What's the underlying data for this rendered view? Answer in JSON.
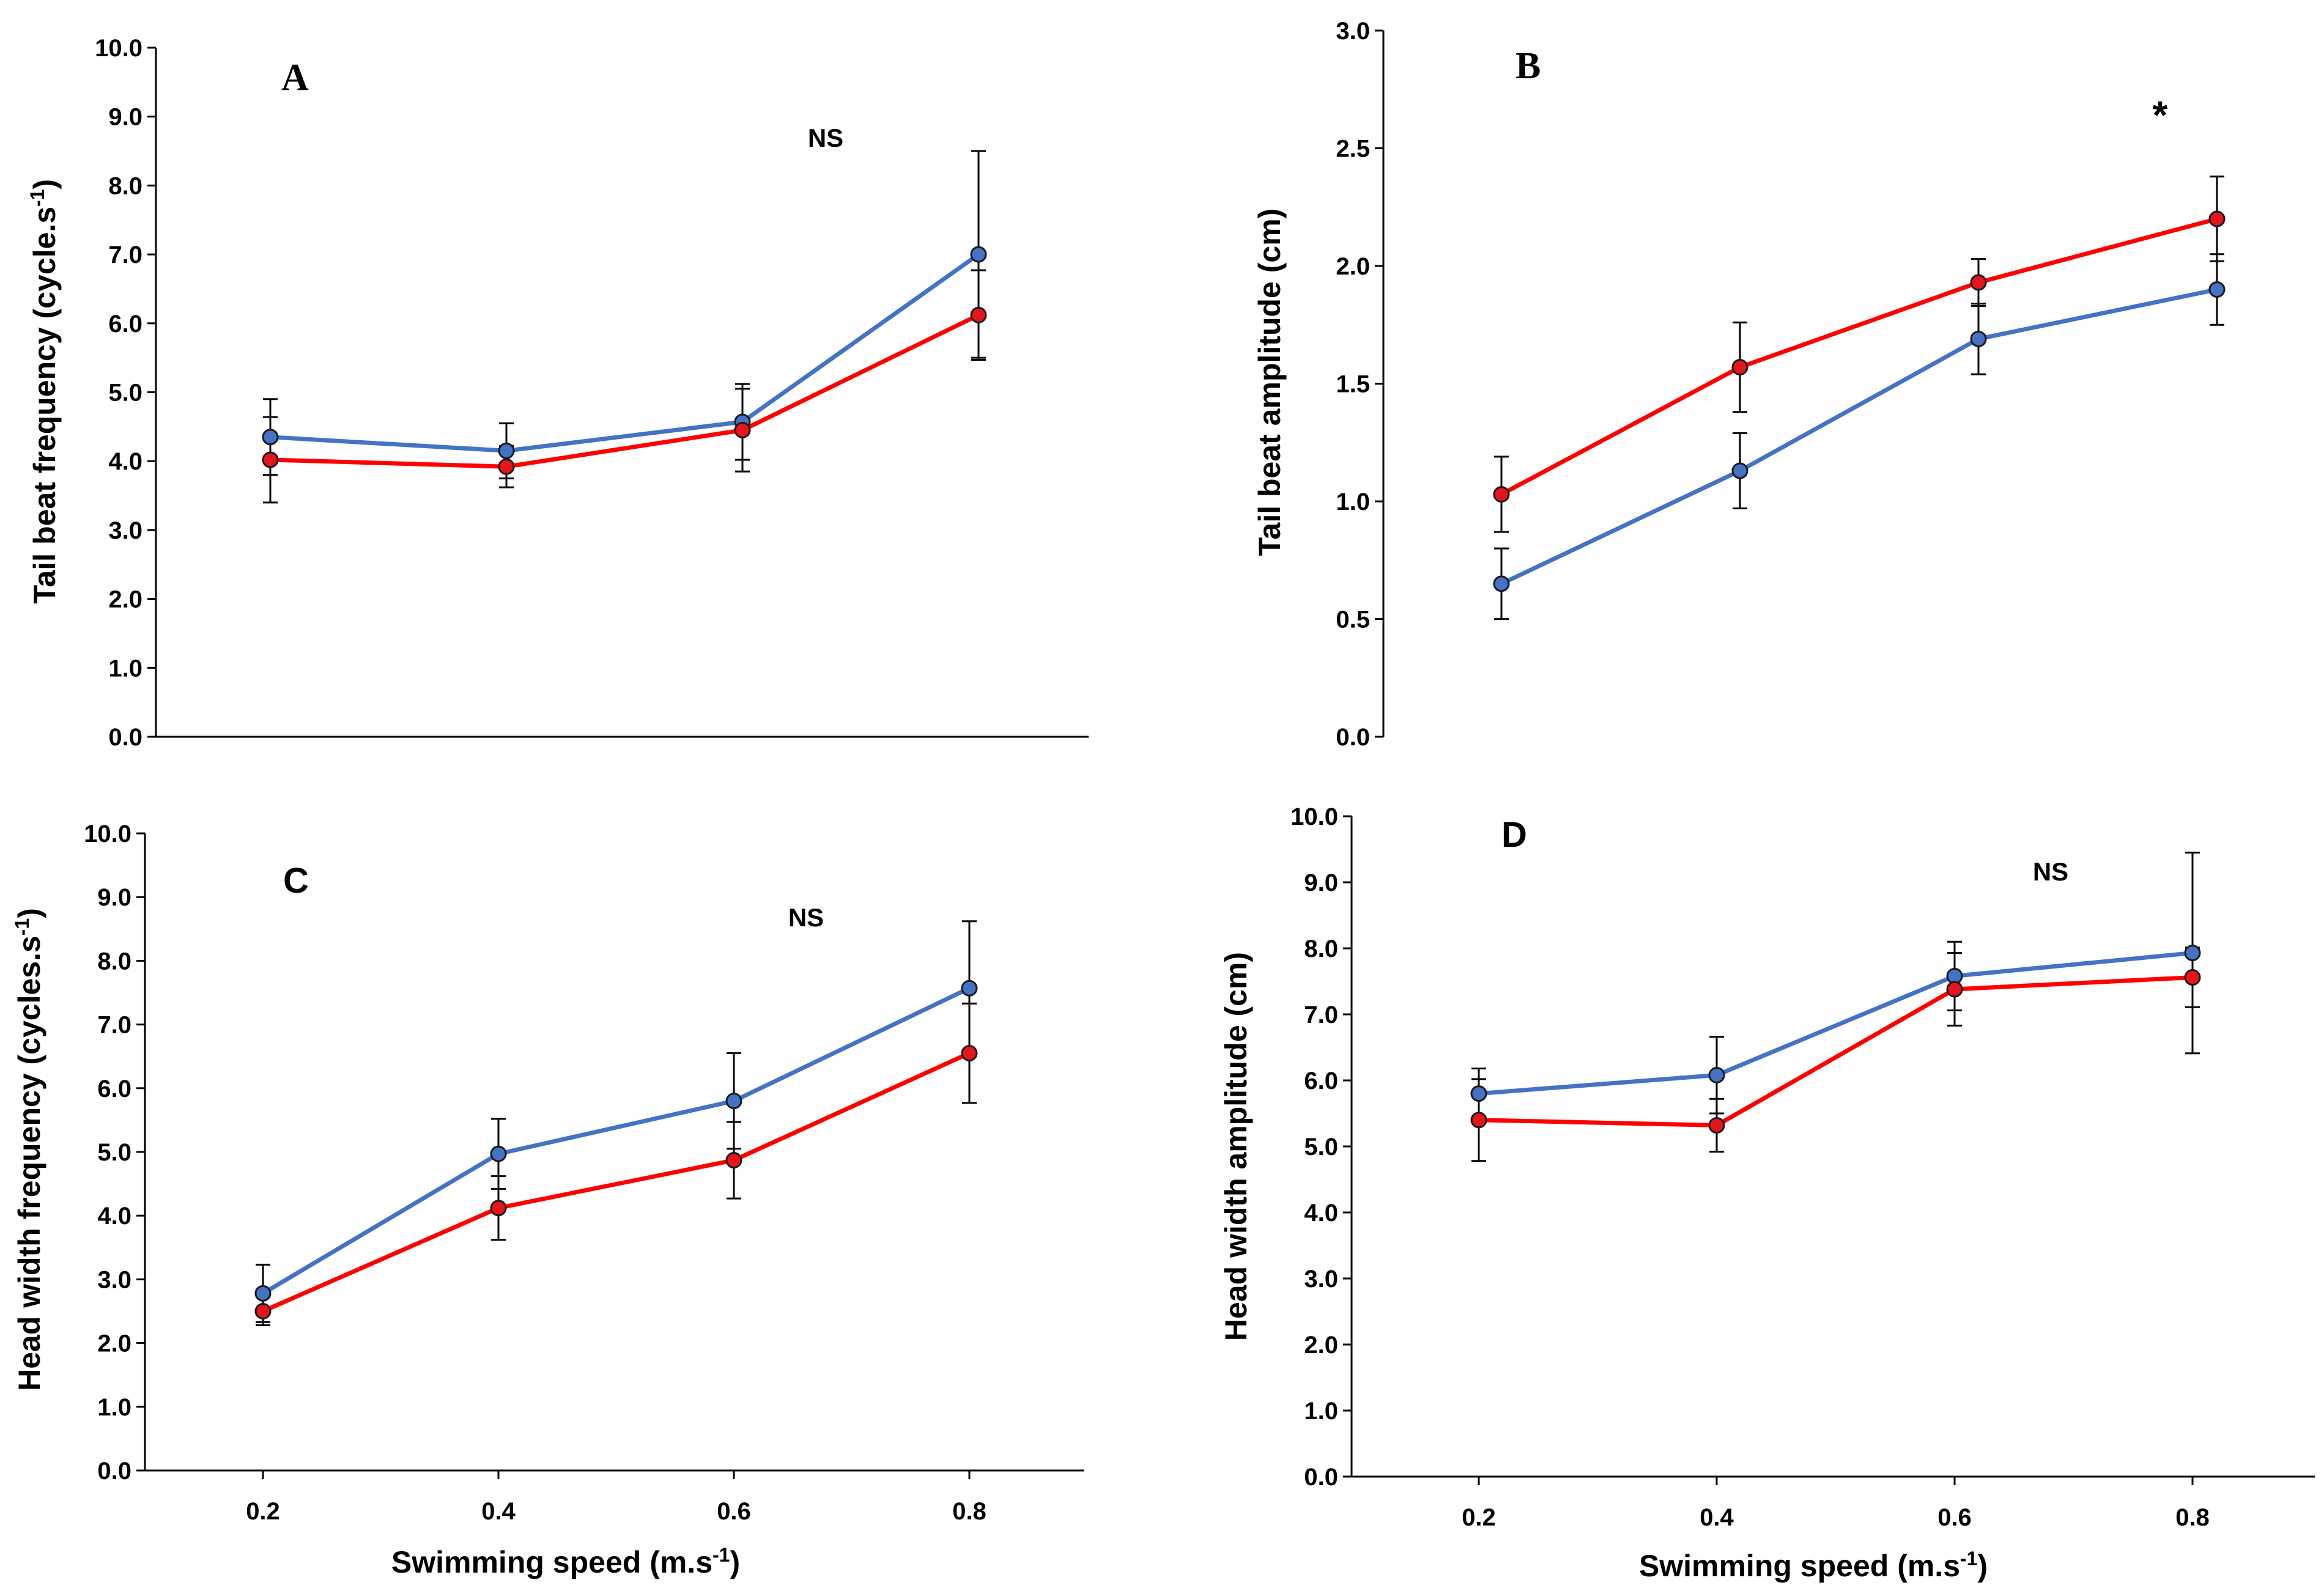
{
  "colors": {
    "series_blue": "#4472C4",
    "series_red": "#FF0000",
    "marker_blue": "#4472C4",
    "marker_red": "#E8141B",
    "axis": "#000000"
  },
  "chart_data": [
    {
      "id": "A",
      "type": "line",
      "panel_label": "A",
      "annotation": "NS",
      "ylabel": "Tail beat frequency (cycle.s",
      "ylabel_sup": "-1",
      "ylabel_close": ")",
      "xlabel": "",
      "ylim": [
        0,
        10
      ],
      "yticks": [
        "0.0",
        "1.0",
        "2.0",
        "3.0",
        "4.0",
        "5.0",
        "6.0",
        "7.0",
        "8.0",
        "9.0",
        "10.0"
      ],
      "x_categories": [],
      "series": [
        {
          "name": "blue",
          "x": [
            0.2,
            0.4,
            0.6,
            0.8
          ],
          "values": [
            4.35,
            4.15,
            4.57,
            7.0
          ],
          "errors": [
            0.55,
            0.4,
            0.55,
            1.5
          ]
        },
        {
          "name": "red",
          "x": [
            0.2,
            0.4,
            0.6,
            0.8
          ],
          "values": [
            4.02,
            3.92,
            4.45,
            6.12
          ],
          "errors": [
            0.62,
            0.3,
            0.6,
            0.65
          ]
        }
      ]
    },
    {
      "id": "B",
      "type": "line",
      "panel_label": "B",
      "annotation": "*",
      "ylabel": "Tail beat amplitude (cm)",
      "ylabel_sup": "",
      "ylabel_close": "",
      "xlabel": "",
      "ylim": [
        0,
        3
      ],
      "yticks": [
        "0.0",
        "0.5",
        "1.0",
        "1.5",
        "2.0",
        "2.5",
        "3.0"
      ],
      "x_categories": [],
      "series": [
        {
          "name": "blue",
          "x": [
            0.22,
            0.42,
            0.62,
            0.82
          ],
          "values": [
            0.65,
            1.13,
            1.69,
            1.9
          ],
          "errors": [
            0.15,
            0.16,
            0.15,
            0.15
          ]
        },
        {
          "name": "red",
          "x": [
            0.22,
            0.42,
            0.62,
            0.82
          ],
          "values": [
            1.03,
            1.57,
            1.93,
            2.2
          ],
          "errors": [
            0.16,
            0.19,
            0.1,
            0.18
          ]
        }
      ]
    },
    {
      "id": "C",
      "type": "line",
      "panel_label": "C",
      "annotation": "NS",
      "ylabel": "Head width frequency (cycles.s",
      "ylabel_sup": "-1",
      "ylabel_close": ")",
      "xlabel": "Swimming speed (m.s",
      "xlabel_sup": "-1",
      "xlabel_close": ")",
      "ylim": [
        0,
        10
      ],
      "yticks": [
        "0.0",
        "1.0",
        "2.0",
        "3.0",
        "4.0",
        "5.0",
        "6.0",
        "7.0",
        "8.0",
        "9.0",
        "10.0"
      ],
      "x_categories": [
        "0.2",
        "0.4",
        "0.6",
        "0.8"
      ],
      "series": [
        {
          "name": "blue",
          "x": [
            0.2,
            0.4,
            0.6,
            0.8
          ],
          "values": [
            2.78,
            4.97,
            5.8,
            7.57
          ],
          "errors": [
            0.45,
            0.55,
            0.75,
            1.05
          ]
        },
        {
          "name": "red",
          "x": [
            0.2,
            0.4,
            0.6,
            0.8
          ],
          "values": [
            2.5,
            4.12,
            4.87,
            6.55
          ],
          "errors": [
            0.22,
            0.5,
            0.6,
            0.78
          ]
        }
      ]
    },
    {
      "id": "D",
      "type": "line",
      "panel_label": "D",
      "annotation": "NS",
      "ylabel": "Head width amplitude (cm)",
      "ylabel_sup": "",
      "ylabel_close": "",
      "xlabel": "Swimming speed (m.s",
      "xlabel_sup": "-1",
      "xlabel_close": ")",
      "ylim": [
        0,
        10
      ],
      "yticks": [
        "0.0",
        "1.0",
        "2.0",
        "3.0",
        "4.0",
        "5.0",
        "6.0",
        "7.0",
        "8.0",
        "9.0",
        "10.0"
      ],
      "x_categories": [
        "0.2",
        "0.4",
        "0.6",
        "0.8"
      ],
      "series": [
        {
          "name": "blue",
          "x": [
            0.2,
            0.4,
            0.6,
            0.8
          ],
          "values": [
            5.8,
            6.08,
            7.58,
            7.93
          ],
          "errors": [
            0.38,
            0.58,
            0.52,
            1.52
          ]
        },
        {
          "name": "red",
          "x": [
            0.2,
            0.4,
            0.6,
            0.8
          ],
          "values": [
            5.4,
            5.32,
            7.38,
            7.56
          ],
          "errors": [
            0.62,
            0.4,
            0.55,
            0.45
          ]
        }
      ]
    }
  ]
}
